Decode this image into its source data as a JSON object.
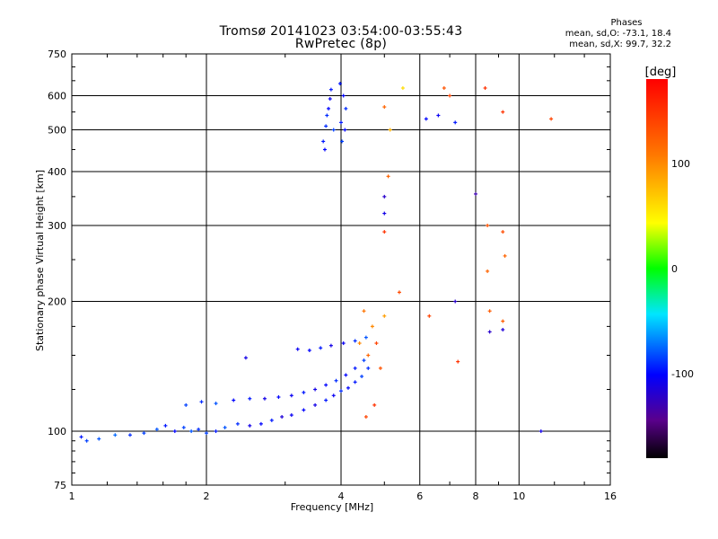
{
  "title": "Tromsø 20141023 03:54:00-03:55:43",
  "subtitle": "RwPretec (8p)",
  "phases": {
    "heading": "Phases",
    "o_line": "mean, sd,O: -73.1, 18.4",
    "x_line": "mean, sd,X:  99.7, 32.2"
  },
  "colors": {
    "background": "#ffffff",
    "axes": "#000000"
  },
  "chart_data": {
    "type": "scatter",
    "xlabel": "Frequency [MHz]",
    "ylabel": "Stationary phase Virtual Height [km]",
    "x_scale": "log",
    "y_scale": "log",
    "xlim": [
      1,
      16
    ],
    "ylim": [
      75,
      750
    ],
    "grid": true,
    "x_ticks": [
      1,
      2,
      4,
      6,
      8,
      10,
      16
    ],
    "y_ticks": [
      75,
      100,
      200,
      300,
      400,
      500,
      600,
      750
    ],
    "colorbar": {
      "label": "[deg]",
      "range": [
        -180,
        180
      ],
      "ticks": [
        100,
        0,
        -100
      ],
      "colormap": "rainbow",
      "placement": "right"
    },
    "series": [
      {
        "mode": "O",
        "points": [
          [
            1.05,
            97,
            -95
          ],
          [
            1.08,
            95,
            -85
          ],
          [
            1.15,
            96,
            -80
          ],
          [
            1.25,
            98,
            -75
          ],
          [
            1.35,
            98,
            -90
          ],
          [
            1.45,
            99,
            -85
          ],
          [
            1.55,
            101,
            -80
          ],
          [
            1.62,
            103,
            -95
          ],
          [
            1.7,
            100,
            -100
          ],
          [
            1.78,
            102,
            -85
          ],
          [
            1.85,
            100,
            -80
          ],
          [
            1.92,
            101,
            -90
          ],
          [
            2.0,
            99,
            -85
          ],
          [
            2.1,
            100,
            -95
          ],
          [
            2.2,
            102,
            -80
          ],
          [
            2.35,
            104,
            -90
          ],
          [
            2.5,
            103,
            -110
          ],
          [
            2.65,
            104,
            -100
          ],
          [
            2.8,
            106,
            -95
          ],
          [
            2.95,
            108,
            -115
          ],
          [
            3.1,
            109,
            -105
          ],
          [
            3.3,
            112,
            -100
          ],
          [
            3.5,
            115,
            -110
          ],
          [
            3.7,
            118,
            -95
          ],
          [
            3.85,
            121,
            -105
          ],
          [
            4.0,
            124,
            -90
          ],
          [
            4.15,
            126,
            -100
          ],
          [
            4.3,
            130,
            -95
          ],
          [
            4.45,
            134,
            -85
          ],
          [
            4.6,
            140,
            -90
          ],
          [
            1.8,
            115,
            -85
          ],
          [
            1.95,
            117,
            -90
          ],
          [
            2.1,
            116,
            -80
          ],
          [
            2.3,
            118,
            -100
          ],
          [
            2.5,
            119,
            -95
          ],
          [
            2.7,
            119,
            -110
          ],
          [
            2.9,
            120,
            -100
          ],
          [
            3.1,
            121,
            -105
          ],
          [
            3.3,
            123,
            -95
          ],
          [
            3.5,
            125,
            -110
          ],
          [
            3.7,
            128,
            -100
          ],
          [
            3.9,
            131,
            -90
          ],
          [
            4.1,
            135,
            -100
          ],
          [
            4.3,
            140,
            -95
          ],
          [
            4.5,
            146,
            -85
          ],
          [
            2.45,
            148,
            -110
          ],
          [
            3.2,
            155,
            -105
          ],
          [
            3.4,
            154,
            -100
          ],
          [
            3.6,
            156,
            -95
          ],
          [
            3.8,
            158,
            -110
          ],
          [
            4.05,
            160,
            -105
          ],
          [
            4.3,
            162,
            -90
          ],
          [
            4.55,
            165,
            -80
          ],
          [
            3.65,
            470,
            -95
          ],
          [
            3.7,
            510,
            -90
          ],
          [
            3.75,
            560,
            -100
          ],
          [
            3.8,
            620,
            -95
          ],
          [
            3.68,
            450,
            -100
          ],
          [
            3.72,
            540,
            -90
          ],
          [
            3.78,
            590,
            -105
          ],
          [
            3.85,
            500,
            -85
          ],
          [
            4.0,
            520,
            -95
          ],
          [
            4.05,
            600,
            -100
          ],
          [
            4.1,
            560,
            -90
          ],
          [
            3.98,
            640,
            -95
          ],
          [
            4.02,
            470,
            -85
          ],
          [
            4.08,
            500,
            -100
          ],
          [
            5.0,
            320,
            -110
          ],
          [
            5.0,
            350,
            -120
          ],
          [
            7.2,
            200,
            -120
          ],
          [
            8.0,
            355,
            -130
          ],
          [
            8.6,
            170,
            -120
          ],
          [
            9.2,
            172,
            -115
          ],
          [
            6.6,
            540,
            -105
          ],
          [
            7.2,
            520,
            -95
          ],
          [
            6.2,
            530,
            -100
          ],
          [
            11.2,
            100,
            -110
          ]
        ]
      },
      {
        "mode": "X",
        "points": [
          [
            4.6,
            150,
            120
          ],
          [
            4.8,
            160,
            140
          ],
          [
            4.7,
            175,
            100
          ],
          [
            5.0,
            185,
            90
          ],
          [
            4.5,
            190,
            110
          ],
          [
            4.9,
            140,
            130
          ],
          [
            4.75,
            115,
            150
          ],
          [
            4.55,
            108,
            140
          ],
          [
            5.0,
            290,
            150
          ],
          [
            5.1,
            390,
            120
          ],
          [
            5.4,
            210,
            135
          ],
          [
            5.5,
            625,
            60
          ],
          [
            5.0,
            565,
            120
          ],
          [
            5.15,
            500,
            80
          ],
          [
            6.8,
            625,
            130
          ],
          [
            7.0,
            600,
            140
          ],
          [
            8.4,
            625,
            150
          ],
          [
            9.2,
            550,
            150
          ],
          [
            11.8,
            530,
            140
          ],
          [
            8.5,
            300,
            130
          ],
          [
            9.2,
            290,
            135
          ],
          [
            9.3,
            255,
            120
          ],
          [
            8.5,
            235,
            120
          ],
          [
            8.6,
            190,
            125
          ],
          [
            9.2,
            180,
            125
          ],
          [
            6.3,
            185,
            140
          ],
          [
            7.3,
            145,
            150
          ],
          [
            4.4,
            160,
            100
          ]
        ]
      }
    ]
  }
}
